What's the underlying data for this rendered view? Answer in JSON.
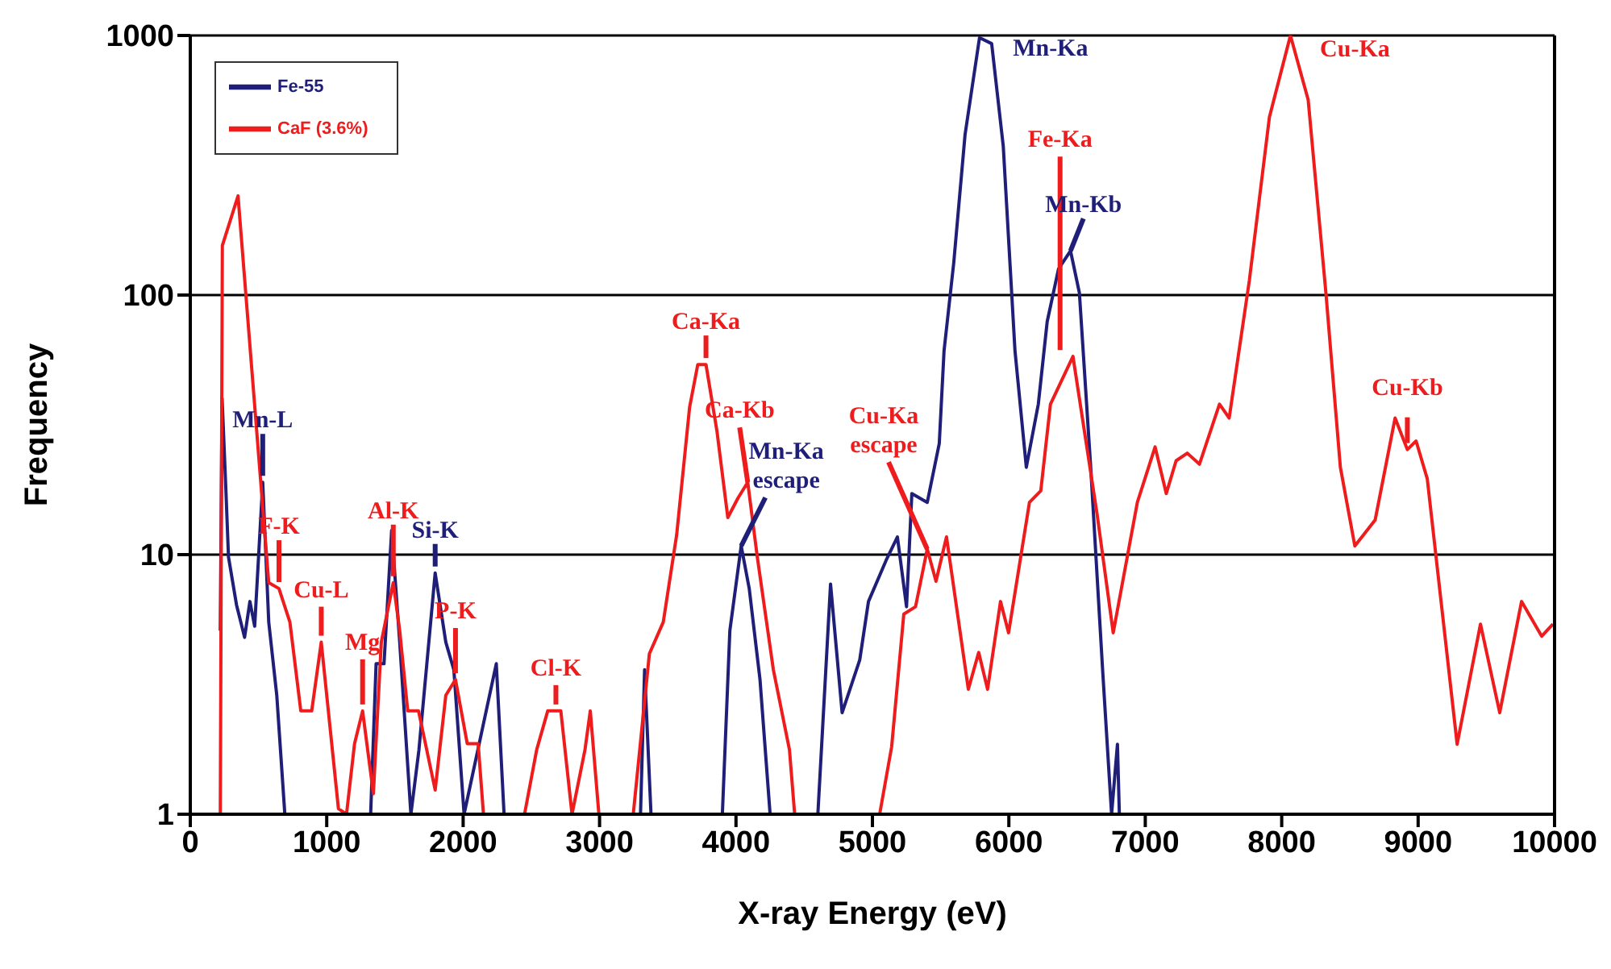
{
  "chart_data": {
    "type": "line",
    "xlabel": "X-ray Energy (eV)",
    "ylabel": "Frequency",
    "log": "y",
    "grid": "y",
    "legend": "top left",
    "marker": "none",
    "line_style": "solid",
    "xlim": [
      0,
      10000
    ],
    "xticks": [
      0,
      1000,
      2000,
      3000,
      4000,
      5000,
      6000,
      7000,
      8000,
      9000,
      10000
    ],
    "ylim": [
      1,
      1000
    ],
    "yticks": [
      1,
      10,
      100,
      1000
    ],
    "series": [
      {
        "name": "Fe-55",
        "color": "#1f1f7a",
        "x": [
          220,
          233,
          260,
          280,
          339,
          398,
          437,
          472,
          531,
          575,
          634,
          693,
          1322,
          1362,
          1420,
          1476,
          1535,
          1617,
          1676,
          1795,
          1873,
          1932,
          2007,
          2243,
          2300,
          3300,
          3330,
          3377,
          3900,
          3955,
          4038,
          4097,
          4176,
          4250,
          4600,
          4693,
          4778,
          4907,
          4971,
          5100,
          5183,
          5250,
          5289,
          5402,
          5490,
          5525,
          5596,
          5679,
          5785,
          5874,
          5959,
          6045,
          6128,
          6216,
          6281,
          6364,
          6452,
          6517,
          6600,
          6688,
          6753,
          6796,
          6810
        ],
        "values": [
          5.1,
          40,
          18.3,
          9.8,
          6.4,
          4.8,
          6.6,
          5.3,
          19,
          5.5,
          2.87,
          1,
          1,
          3.8,
          3.8,
          12.4,
          4.6,
          1,
          1.77,
          8.5,
          4.6,
          3.6,
          1,
          3.8,
          1,
          1,
          3.6,
          1,
          1,
          5.1,
          10.8,
          7.4,
          3.3,
          1,
          1,
          7.7,
          2.46,
          3.93,
          6.6,
          9.5,
          11.7,
          6.3,
          17.2,
          15.9,
          26.8,
          61,
          133,
          415,
          980,
          930,
          375,
          61,
          21.7,
          38,
          79,
          126,
          148,
          102,
          21.7,
          3.55,
          1,
          1.86,
          1
        ]
      },
      {
        "name": "CaF (3.6%)",
        "color": "#ee1c1c",
        "x": [
          220,
          235,
          350,
          575,
          650,
          730,
          810,
          890,
          960,
          1086,
          1145,
          1204,
          1263,
          1342,
          1400,
          1488,
          1535,
          1594,
          1673,
          1795,
          1873,
          1944,
          2030,
          2110,
          2149,
          2450,
          2539,
          2620,
          2680,
          2716,
          2798,
          2893,
          2932,
          2995,
          3247,
          3365,
          3467,
          3565,
          3660,
          3720,
          3780,
          3860,
          3940,
          4014,
          4086,
          4156,
          4274,
          4392,
          4430,
          5053,
          5141,
          5230,
          5316,
          5402,
          5466,
          5543,
          5703,
          5779,
          5844,
          5939,
          5998,
          6151,
          6234,
          6305,
          6470,
          6647,
          6765,
          6942,
          7072,
          7154,
          7226,
          7308,
          7397,
          7544,
          7615,
          7763,
          7910,
          8064,
          8194,
          8324,
          8430,
          8536,
          8685,
          8831,
          8921,
          8985,
          9067,
          9286,
          9457,
          9598,
          9758,
          9906,
          9988
        ],
        "values": [
          1,
          155,
          241,
          7.8,
          7.4,
          5.5,
          2.5,
          2.5,
          4.6,
          1.05,
          1,
          1.87,
          2.5,
          1.2,
          4.6,
          7.8,
          5.1,
          2.5,
          2.5,
          1.24,
          2.87,
          3.3,
          1.87,
          1.87,
          1,
          1,
          1.77,
          2.5,
          2.5,
          2.5,
          1,
          1.77,
          2.5,
          1,
          1,
          4.15,
          5.5,
          11.9,
          37,
          54,
          54,
          30,
          13.9,
          16.5,
          19,
          9.8,
          3.6,
          1.77,
          1,
          1,
          1.82,
          5.9,
          6.3,
          10.5,
          7.9,
          11.7,
          3.03,
          4.2,
          3.03,
          6.6,
          5,
          15.9,
          17.6,
          38,
          58,
          14.3,
          5,
          15.9,
          26,
          17.2,
          23,
          24.6,
          22.3,
          38,
          33.6,
          114,
          485,
          1000,
          565,
          102,
          21.7,
          10.8,
          13.6,
          33.6,
          25.4,
          27.4,
          19.6,
          1.86,
          5.4,
          2.46,
          6.6,
          4.85,
          5.4
        ]
      }
    ],
    "annotations": [
      {
        "text": "Mn-L",
        "x": 531,
        "y": 19
      },
      {
        "text": "F-K",
        "x": 650,
        "y": 7.4
      },
      {
        "text": "Cu-L",
        "x": 960,
        "y": 4.6
      },
      {
        "text": "Mg",
        "x": 1263,
        "y": 2.5
      },
      {
        "text": "Al-K",
        "x": 1488,
        "y": 7.8
      },
      {
        "text": "Si-K",
        "x": 1795,
        "y": 8.5
      },
      {
        "text": "P-K",
        "x": 1944,
        "y": 3.3
      },
      {
        "text": "Cl-K",
        "x": 2680,
        "y": 2.5
      },
      {
        "text": "Ca-Ka",
        "x": 3780,
        "y": 54
      },
      {
        "text": "Ca-Kb",
        "x": 4086,
        "y": 19
      },
      {
        "text": "Mn-Ka escape",
        "x": 4038,
        "y": 10.8
      },
      {
        "text": "Cu-Ka escape",
        "x": 5402,
        "y": 10.5
      },
      {
        "text": "Mn-Ka",
        "x": 5785,
        "y": 980
      },
      {
        "text": "Fe-Ka",
        "x": 6470,
        "y": 58
      },
      {
        "text": "Mn-Kb",
        "x": 6452,
        "y": 148
      },
      {
        "text": "Cu-Ka",
        "x": 8064,
        "y": 1000
      },
      {
        "text": "Cu-Kb",
        "x": 8921,
        "y": 25.4
      }
    ]
  }
}
